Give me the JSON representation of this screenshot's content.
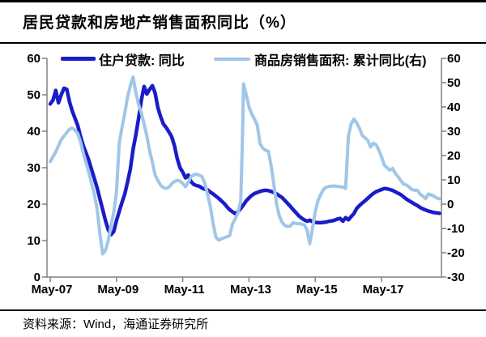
{
  "title": {
    "text": "居民贷款和房地产销售面积同比（%）"
  },
  "source": {
    "text": "资料来源：Wind，海通证券研究所"
  },
  "legend": [
    {
      "label": "住户贷款: 同比",
      "color": "#1b1cc8"
    },
    {
      "label": "商品房销售面积: 累计同比(右)",
      "color": "#a0c6e8"
    }
  ],
  "colors": {
    "axis": "#808080",
    "text": "#000000",
    "background": "#ffffff",
    "loan_line": "#1b1cc8",
    "sales_line": "#a0c6e8"
  },
  "chart_data": {
    "type": "line",
    "title": "居民贷款和房地产销售面积同比（%）",
    "xlabel": "",
    "ylabel": "",
    "grid": false,
    "legend_position": "top",
    "x_axis": {
      "unit": "months since May-2007",
      "tick_labels": [
        "May-07",
        "May-09",
        "May-11",
        "May-13",
        "May-15",
        "May-17"
      ],
      "tick_months": [
        0,
        24,
        48,
        72,
        96,
        120
      ],
      "range_months": [
        0,
        141
      ]
    },
    "left_axis": {
      "range": [
        0,
        60
      ],
      "ticks": [
        0,
        10,
        20,
        30,
        40,
        50,
        60
      ],
      "series": "住户贷款: 同比"
    },
    "right_axis": {
      "range": [
        -30,
        60
      ],
      "ticks": [
        -30,
        -20,
        -10,
        0,
        10,
        20,
        30,
        40,
        50,
        60
      ],
      "series": "商品房销售面积: 累计同比(右)"
    },
    "series": [
      {
        "name": "住户贷款: 同比",
        "axis": "left",
        "color": "#1b1cc8",
        "stroke_width": 4.5,
        "points": [
          [
            0,
            47.5
          ],
          [
            1,
            48.5
          ],
          [
            2,
            51.2
          ],
          [
            3,
            47.8
          ],
          [
            4,
            50
          ],
          [
            5,
            51.8
          ],
          [
            6,
            51.5
          ],
          [
            7,
            48
          ],
          [
            8,
            45.5
          ],
          [
            9,
            43.5
          ],
          [
            10,
            41.5
          ],
          [
            11,
            38.5
          ],
          [
            12,
            36
          ],
          [
            13,
            34
          ],
          [
            14,
            32
          ],
          [
            15,
            29.5
          ],
          [
            16,
            27
          ],
          [
            17,
            24.5
          ],
          [
            18,
            21.5
          ],
          [
            19,
            18.5
          ],
          [
            20,
            15.5
          ],
          [
            21,
            13
          ],
          [
            22,
            11.6
          ],
          [
            23,
            12.5
          ],
          [
            24,
            15.5
          ],
          [
            25,
            18
          ],
          [
            26,
            20.5
          ],
          [
            27,
            22.7
          ],
          [
            28,
            26
          ],
          [
            29,
            29.5
          ],
          [
            30,
            35
          ],
          [
            31,
            39
          ],
          [
            32,
            43.5
          ],
          [
            33,
            48.5
          ],
          [
            34,
            52.3
          ],
          [
            35,
            50.2
          ],
          [
            36,
            51.5
          ],
          [
            37,
            52.5
          ],
          [
            38,
            50.5
          ],
          [
            39,
            46.5
          ],
          [
            40,
            44
          ],
          [
            41,
            42
          ],
          [
            42,
            41
          ],
          [
            43,
            39.8
          ],
          [
            44,
            38.5
          ],
          [
            45,
            36
          ],
          [
            46,
            32.5
          ],
          [
            47,
            30
          ],
          [
            48,
            28.8
          ],
          [
            49,
            27.2
          ],
          [
            50,
            28
          ],
          [
            51,
            26.2
          ],
          [
            52,
            25.4
          ],
          [
            53,
            25.1
          ],
          [
            54,
            24.9
          ],
          [
            55,
            24.4
          ],
          [
            56,
            24.1
          ],
          [
            57,
            23.9
          ],
          [
            58,
            23.3
          ],
          [
            59,
            22.8
          ],
          [
            60,
            22.2
          ],
          [
            61,
            21.6
          ],
          [
            62,
            20.9
          ],
          [
            63,
            20.2
          ],
          [
            64,
            19.3
          ],
          [
            65,
            18.5
          ],
          [
            66,
            17.9
          ],
          [
            67,
            17.4
          ],
          [
            68,
            17.9
          ],
          [
            69,
            18.8
          ],
          [
            70,
            19.8
          ],
          [
            71,
            20.9
          ],
          [
            72,
            21.7
          ],
          [
            73,
            22.4
          ],
          [
            74,
            22.9
          ],
          [
            75,
            23.2
          ],
          [
            76,
            23.5
          ],
          [
            77,
            23.7
          ],
          [
            78,
            23.8
          ],
          [
            79,
            23.7
          ],
          [
            80,
            23.5
          ],
          [
            81,
            23.2
          ],
          [
            82,
            22.8
          ],
          [
            83,
            22.3
          ],
          [
            84,
            21.8
          ],
          [
            85,
            21
          ],
          [
            86,
            20.2
          ],
          [
            87,
            19.4
          ],
          [
            88,
            18.5
          ],
          [
            89,
            17.7
          ],
          [
            90,
            16.8
          ],
          [
            91,
            16.2
          ],
          [
            92,
            15.7
          ],
          [
            93,
            15.3
          ],
          [
            94,
            15.6
          ],
          [
            95,
            15.2
          ],
          [
            96,
            15
          ],
          [
            97,
            14.9
          ],
          [
            98,
            14.9
          ],
          [
            99,
            15
          ],
          [
            100,
            15.1
          ],
          [
            101,
            15.3
          ],
          [
            102,
            15.4
          ],
          [
            103,
            15.6
          ],
          [
            104,
            15.9
          ],
          [
            105,
            16.1
          ],
          [
            106,
            15.3
          ],
          [
            107,
            16.3
          ],
          [
            108,
            15.7
          ],
          [
            109,
            16.6
          ],
          [
            110,
            17.4
          ],
          [
            111,
            18.8
          ],
          [
            112,
            19.6
          ],
          [
            113,
            20.3
          ],
          [
            114,
            20.9
          ],
          [
            115,
            21.6
          ],
          [
            116,
            22.3
          ],
          [
            117,
            22.9
          ],
          [
            118,
            23.4
          ],
          [
            119,
            23.7
          ],
          [
            120,
            24
          ],
          [
            121,
            24.3
          ],
          [
            122,
            24.2
          ],
          [
            123,
            24
          ],
          [
            124,
            23.8
          ],
          [
            125,
            23.4
          ],
          [
            126,
            23
          ],
          [
            127,
            22.6
          ],
          [
            128,
            22
          ],
          [
            129,
            21.4
          ],
          [
            130,
            20.9
          ],
          [
            131,
            20.5
          ],
          [
            132,
            20
          ],
          [
            133,
            19.6
          ],
          [
            134,
            19.1
          ],
          [
            135,
            18.7
          ],
          [
            136,
            18.4
          ],
          [
            137,
            18.1
          ],
          [
            138,
            17.9
          ],
          [
            139,
            17.7
          ],
          [
            140,
            17.6
          ],
          [
            141,
            17.5
          ]
        ]
      },
      {
        "name": "商品房销售面积: 累计同比(右)",
        "axis": "right",
        "color": "#a0c6e8",
        "stroke_width": 4,
        "points": [
          [
            0,
            17.5
          ],
          [
            1,
            19.5
          ],
          [
            2,
            21.5
          ],
          [
            3,
            24
          ],
          [
            4,
            26.5
          ],
          [
            5,
            28
          ],
          [
            6,
            29.5
          ],
          [
            7,
            30.8
          ],
          [
            8,
            31.3
          ],
          [
            9,
            30.5
          ],
          [
            10,
            29
          ],
          [
            11,
            25.5
          ],
          [
            12,
            21
          ],
          [
            13,
            17
          ],
          [
            14,
            13
          ],
          [
            15,
            8.5
          ],
          [
            16,
            4
          ],
          [
            17,
            -2
          ],
          [
            18,
            -12
          ],
          [
            19,
            -20.5
          ],
          [
            20,
            -19
          ],
          [
            21,
            -15
          ],
          [
            22,
            -9
          ],
          [
            23,
            -3.5
          ],
          [
            24,
            5
          ],
          [
            25,
            25
          ],
          [
            26,
            31.5
          ],
          [
            27,
            37.3
          ],
          [
            28,
            44
          ],
          [
            29,
            48.5
          ],
          [
            30,
            52.3
          ],
          [
            31,
            46
          ],
          [
            32,
            41
          ],
          [
            33,
            37.5
          ],
          [
            34,
            33
          ],
          [
            35,
            28
          ],
          [
            36,
            22
          ],
          [
            37,
            17.3
          ],
          [
            38,
            12
          ],
          [
            39,
            9.7
          ],
          [
            40,
            7.8
          ],
          [
            41,
            6.8
          ],
          [
            42,
            6.5
          ],
          [
            43,
            7
          ],
          [
            44,
            8.4
          ],
          [
            45,
            9.3
          ],
          [
            46,
            9.8
          ],
          [
            47,
            9.5
          ],
          [
            48,
            8.5
          ],
          [
            49,
            7.2
          ],
          [
            50,
            9
          ],
          [
            51,
            11.3
          ],
          [
            52,
            12.1
          ],
          [
            53,
            12.3
          ],
          [
            54,
            12
          ],
          [
            55,
            11.3
          ],
          [
            56,
            8.5
          ],
          [
            57,
            4
          ],
          [
            58,
            -1
          ],
          [
            59,
            -8
          ],
          [
            60,
            -13.5
          ],
          [
            61,
            -14.8
          ],
          [
            62,
            -14.3
          ],
          [
            63,
            -13.8
          ],
          [
            64,
            -13.4
          ],
          [
            65,
            -13
          ],
          [
            66,
            -8.3
          ],
          [
            67,
            -6
          ],
          [
            68,
            -3.6
          ],
          [
            69,
            1.3
          ],
          [
            69.6,
            25
          ],
          [
            70,
            49.5
          ],
          [
            71,
            45
          ],
          [
            72,
            40
          ],
          [
            73,
            37
          ],
          [
            74,
            35
          ],
          [
            75,
            32.5
          ],
          [
            76,
            25
          ],
          [
            77,
            23
          ],
          [
            78,
            22.2
          ],
          [
            79,
            21.8
          ],
          [
            80,
            16
          ],
          [
            81,
            8
          ],
          [
            82,
            0
          ],
          [
            83,
            -5
          ],
          [
            84,
            -7.5
          ],
          [
            85,
            -8.8
          ],
          [
            86,
            -9.2
          ],
          [
            87,
            -9
          ],
          [
            88,
            -7.6
          ],
          [
            89,
            -8
          ],
          [
            90,
            -8
          ],
          [
            91,
            -8.2
          ],
          [
            92,
            -8.5
          ],
          [
            93,
            -10.5
          ],
          [
            94,
            -16.3
          ],
          [
            95,
            -10
          ],
          [
            96,
            -3
          ],
          [
            97,
            1.5
          ],
          [
            98,
            4
          ],
          [
            99,
            6.1
          ],
          [
            100,
            7
          ],
          [
            101,
            7.3
          ],
          [
            102,
            7.4
          ],
          [
            103,
            7.5
          ],
          [
            104,
            7.3
          ],
          [
            105,
            7.2
          ],
          [
            106,
            7
          ],
          [
            107,
            6.5
          ],
          [
            108,
            28
          ],
          [
            109,
            33
          ],
          [
            110,
            35
          ],
          [
            111,
            33.5
          ],
          [
            112,
            31.3
          ],
          [
            113,
            28.3
          ],
          [
            114,
            27.3
          ],
          [
            115,
            26.3
          ],
          [
            116,
            23.5
          ],
          [
            117,
            25.1
          ],
          [
            118,
            24.5
          ],
          [
            119,
            22.3
          ],
          [
            120,
            19.5
          ],
          [
            121,
            16.1
          ],
          [
            122,
            15
          ],
          [
            123,
            14
          ],
          [
            124,
            14.7
          ],
          [
            125,
            12.7
          ],
          [
            126,
            11.3
          ],
          [
            127,
            9.7
          ],
          [
            128,
            8.2
          ],
          [
            129,
            7.9
          ],
          [
            130,
            7
          ],
          [
            131,
            6
          ],
          [
            132,
            5.7
          ],
          [
            133,
            5.7
          ],
          [
            134,
            4.1
          ],
          [
            135,
            3.3
          ],
          [
            136,
            2.3
          ],
          [
            137,
            4.2
          ],
          [
            138,
            3.8
          ],
          [
            139,
            3.3
          ],
          [
            140,
            2.5
          ],
          [
            141,
            2.2
          ]
        ]
      }
    ]
  }
}
